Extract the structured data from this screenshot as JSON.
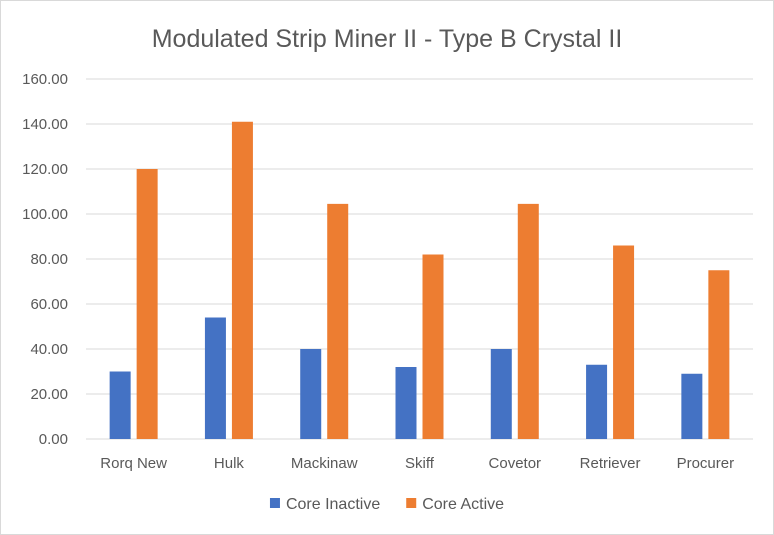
{
  "chart_data": {
    "type": "bar",
    "title": "Modulated Strip Miner II  - Type B Crystal II",
    "xlabel": "",
    "ylabel": "",
    "categories": [
      "Rorq New",
      "Hulk",
      "Mackinaw",
      "Skiff",
      "Covetor",
      "Retriever",
      "Procurer"
    ],
    "series": [
      {
        "name": "Core Inactive",
        "color": "#4472c4",
        "values": [
          30.0,
          54.0,
          40.0,
          32.0,
          40.0,
          33.0,
          29.0
        ]
      },
      {
        "name": "Core Active",
        "color": "#ed7d31",
        "values": [
          120.0,
          141.0,
          104.5,
          82.0,
          104.5,
          86.0,
          75.0
        ]
      }
    ],
    "ylim": [
      0,
      160
    ],
    "yticks": [
      "0.00",
      "20.00",
      "40.00",
      "60.00",
      "80.00",
      "100.00",
      "120.00",
      "140.00",
      "160.00"
    ],
    "grid": true,
    "legend_position": "bottom"
  }
}
